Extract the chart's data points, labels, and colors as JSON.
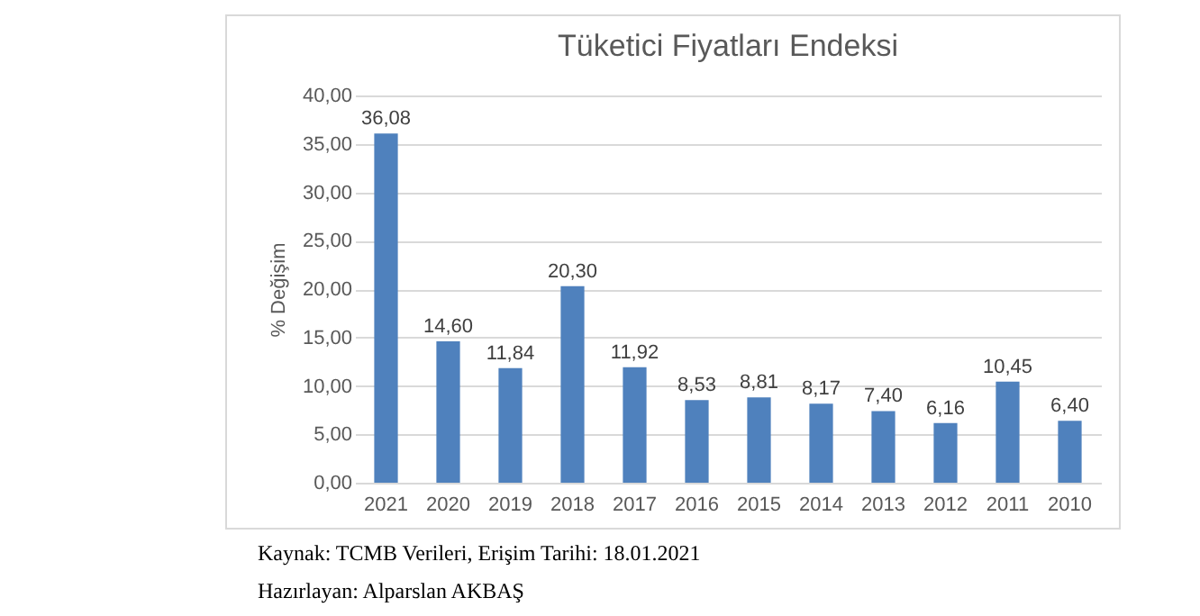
{
  "chart_data": {
    "type": "bar",
    "title": "Tüketici Fiyatları Endeksi",
    "ylabel": "% Değişim",
    "categories": [
      "2021",
      "2020",
      "2019",
      "2018",
      "2017",
      "2016",
      "2015",
      "2014",
      "2013",
      "2012",
      "2011",
      "2010"
    ],
    "values": [
      36.08,
      14.6,
      11.84,
      20.3,
      11.92,
      8.53,
      8.81,
      8.17,
      7.4,
      6.16,
      10.45,
      6.4
    ],
    "value_labels": [
      "36,08",
      "14,60",
      "11,84",
      "20,30",
      "11,92",
      "8,53",
      "8,81",
      "8,17",
      "7,40",
      "6,16",
      "10,45",
      "6,40"
    ],
    "color": "#4f81bd",
    "ylim": [
      0,
      40
    ],
    "yticks": [
      {
        "value": 0,
        "label": "0,00"
      },
      {
        "value": 5,
        "label": "5,00"
      },
      {
        "value": 10,
        "label": "10,00"
      },
      {
        "value": 15,
        "label": "15,00"
      },
      {
        "value": 20,
        "label": "20,00"
      },
      {
        "value": 25,
        "label": "25,00"
      },
      {
        "value": 30,
        "label": "30,00"
      },
      {
        "value": 35,
        "label": "35,00"
      },
      {
        "value": 40,
        "label": "40,00"
      }
    ],
    "grid": true,
    "annotations": [
      "Kaynak: TCMB Verileri, Erişim Tarihi: 18.01.2021",
      "Hazırlayan: Alparslan AKBAŞ"
    ]
  }
}
